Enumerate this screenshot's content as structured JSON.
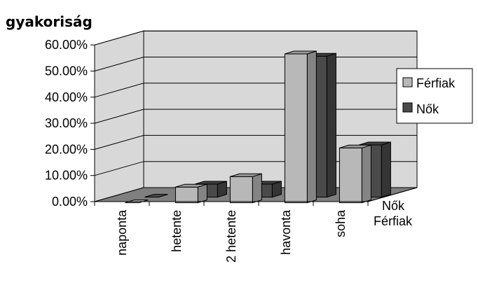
{
  "chart_data": {
    "type": "bar",
    "title": "gyakoriság",
    "categories": [
      "naponta",
      "hetente",
      "2 hetente",
      "havonta",
      "soha"
    ],
    "series": [
      {
        "name": "Férfiak",
        "values": [
          0.0,
          6.0,
          10.0,
          57.0,
          21.0
        ],
        "color": "#b8b8b8"
      },
      {
        "name": "Nők",
        "values": [
          0.0,
          5.0,
          5.0,
          54.0,
          20.0
        ],
        "color": "#4a4a4a"
      }
    ],
    "depth_labels": [
      "Nők",
      "Férfiak"
    ],
    "ytick_labels": [
      "0.00%",
      "10.00%",
      "20.00%",
      "30.00%",
      "40.00%",
      "50.00%",
      "60.00%"
    ],
    "ylim": [
      0,
      60
    ],
    "y_unit": "%",
    "grid": true,
    "legend_position": "right",
    "colors": {
      "back_wall": "#d8d8d8",
      "floor": "#7f7f7f",
      "grid": "#000000"
    }
  }
}
